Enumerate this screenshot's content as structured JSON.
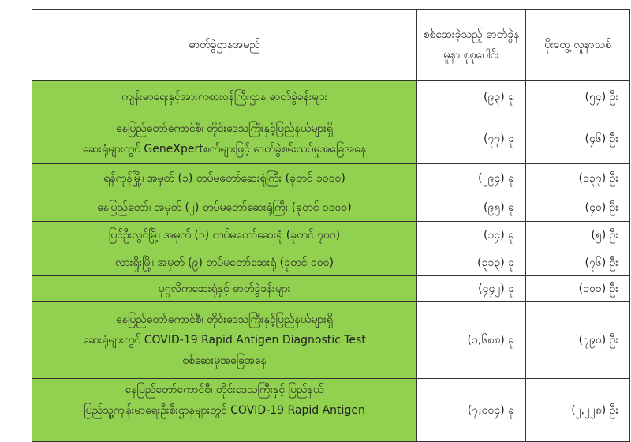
{
  "table": {
    "headers": [
      "ဓာတ်ခွဲဌာနအမည်",
      "စစ်ဆေးခဲ့သည့် ဓာတ်ခွဲနမူနာ စုစုပေါင်း",
      "ပိုးတွေ့ လူနာသစ်"
    ],
    "colors": {
      "name_cell": "#92d050",
      "border": "#333333"
    },
    "rows": [
      {
        "name": [
          "ကျန်းမာရေးနှင့်အားကစားဝန်ကြီးဌာန ဓာတ်ခွဲခန်းများ"
        ],
        "samples": "(၉၃) ခု",
        "cases": "(၅၄) ဦး"
      },
      {
        "name": [
          "နေပြည်တော်ကောင်စီ၊ တိုင်းဒေသကြီးနှင့်ပြည်နယ်များရှိ",
          "ဆေးရုံများတွင် GeneXpertစက်များဖြင့် ဓာတ်ခွဲစမ်းသပ်မှုအခြေအနေ"
        ],
        "samples": "(၇၇) ခု",
        "cases": "(၄၆) ဦး"
      },
      {
        "name": [
          "ရန်ကုန်မြို့၊ အမှတ် (၁) တပ်မတော်ဆေးရုံကြီး (ခုတင် ၁၀၀၀)"
        ],
        "samples": "(၂၉၄) ခု",
        "cases": "(၁၃၇) ဦး"
      },
      {
        "name": [
          "နေပြည်တော်၊ အမှတ် (၂) တပ်မတော်ဆေးရုံကြီး (ခုတင် ၁၀၀၀)"
        ],
        "samples": "(၉၅) ခု",
        "cases": "(၄၀) ဦး"
      },
      {
        "name": [
          "ပြင်ဦးလွင်မြို့၊ အမှတ် (၁) တပ်မတော်ဆေးရုံ (ခုတင် ၇၀၀)"
        ],
        "samples": "(၁၄) ခု",
        "cases": "(၅) ဦး"
      },
      {
        "name": [
          "လားရှိုးမြို့၊ အမှတ် (၉) တပ်မတော်ဆေးရုံ (ခုတင် ၁၀၀)"
        ],
        "samples": "(၃၁၃) ခု",
        "cases": "(၇၆) ဦး"
      },
      {
        "name": [
          "ပုဂ္ဂလိကဆေးရုံနှင့် ဓာတ်ခွဲခန်းများ"
        ],
        "samples": "(၄၄၂) ခု",
        "cases": "(၁၀၁) ဦး"
      },
      {
        "name": [
          "နေပြည်တော်ကောင်စီ၊ တိုင်းဒေသကြီးနှင့်ပြည်နယ်များရှိ",
          "ဆေးရုံများတွင် COVID-19 Rapid Antigen Diagnostic Test",
          "စစ်ဆေးမှုအခြေအနေ"
        ],
        "samples": "(၁,၆၈၈) ခု",
        "cases": "(၇၉၀) ဦး"
      },
      {
        "name": [
          "နေပြည်တော်ကောင်စီ၊ တိုင်းဒေသကြီးနှင့် ပြည်နယ်",
          "ပြည်သူ့ကျန်းမာရေးဦးစီးဌာနများတွင်  COVID-19 Rapid Antigen",
          ""
        ],
        "samples": "(၇,၀၀၄) ခု",
        "cases": "(၂,၂၂၈) ဦး"
      }
    ]
  }
}
